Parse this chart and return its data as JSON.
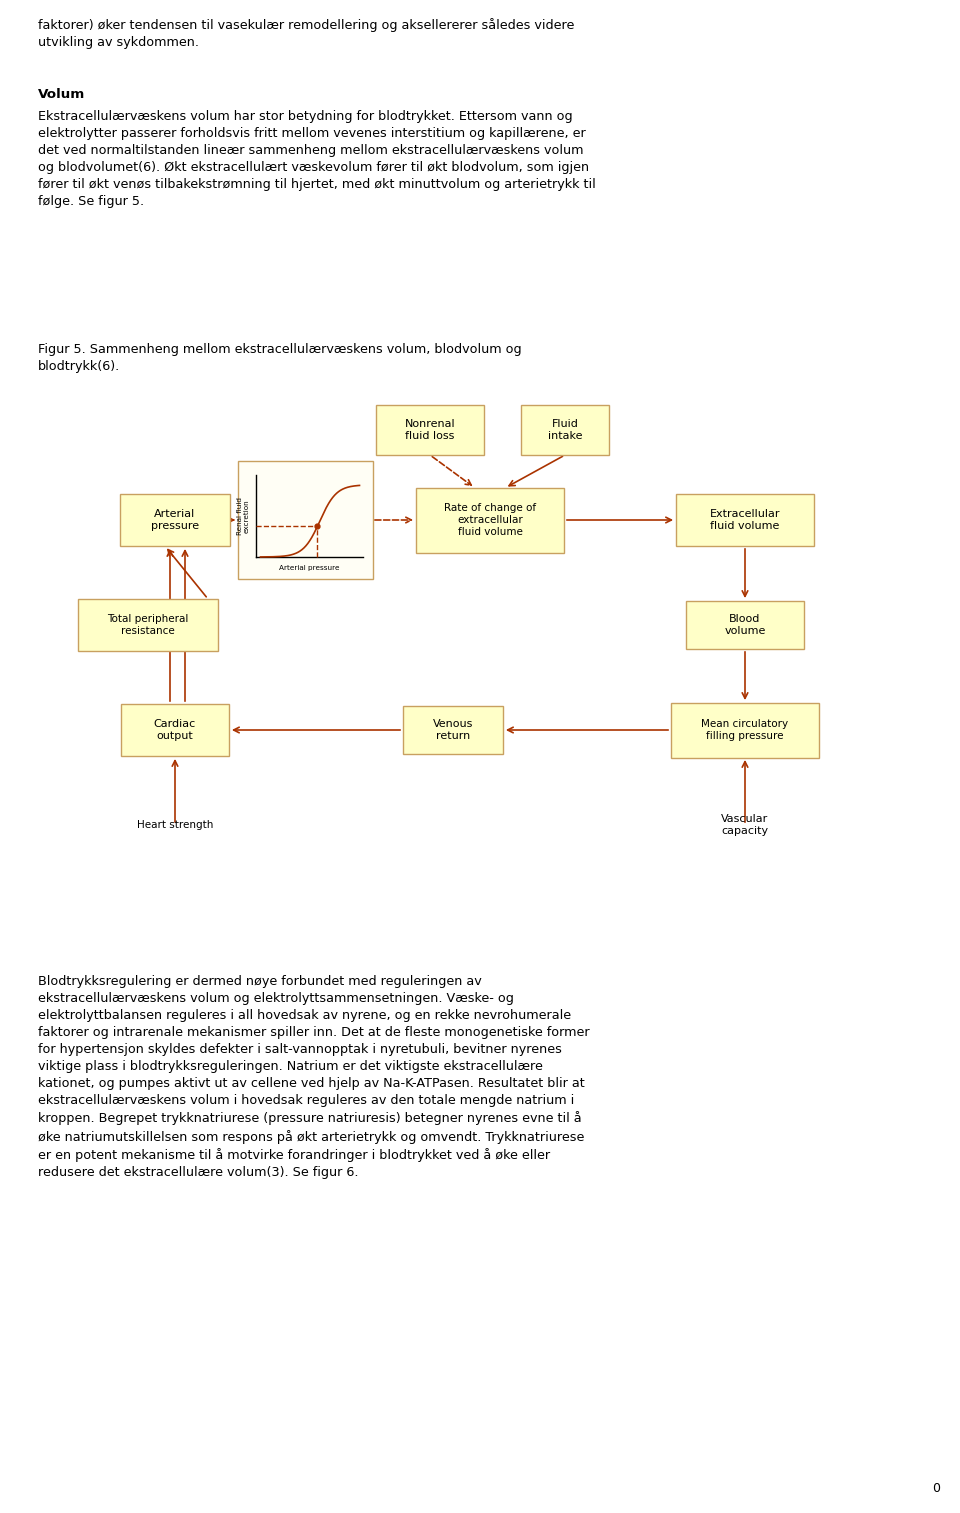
{
  "bg_color": "#ffffff",
  "box_fill": "#ffffc8",
  "box_edge": "#c8a060",
  "arrow_color": "#aa3300",
  "text_color": "#000000",
  "fig_width": 9.6,
  "fig_height": 15.13,
  "top_text": "faktorer) øker tendensen til vasekulær remodellering og aksellererer således videre\nutvikling av sykdommen.",
  "volum_header": "Volum",
  "body_text": "Ekstracellulærvæskens volum har stor betydning for blodtrykket. Ettersom vann og\nelektrolytter passerer forholdsvis fritt mellom vevenes interstitium og kapillærene, er\ndet ved normaltilstanden lineær sammenheng mellom ekstracellulærvæskens volum\nog blodvolumet(6). Økt ekstracellulært væskevolum fører til økt blodvolum, som igjen\nfører til økt venøs tilbakekstrømning til hjertet, med økt minuttvolum og arterietrykk til\nfølge. Se figur 5.",
  "figur_caption": "Figur 5. Sammenheng mellom ekstracellulærvæskens volum, blodvolum og\nblodtrykk(6).",
  "bottom_text": "Blodtrykksregulering er dermed nøye forbundet med reguleringen av\nekstracellulærvæskens volum og elektrolyttsammensetningen. Væske- og\nelektrolyttbalansen reguleres i all hovedsak av nyrene, og en rekke nevrohumerale\nfaktorer og intrarenale mekanismer spiller inn. Det at de fleste monogenetiske former\nfor hypertensjon skyldes defekter i salt-vannopptak i nyretubuli, bevitner nyrenes\nviktige plass i blodtrykksreguleringen. Natrium er det viktigste ekstracellulære\nkationet, og pumpes aktivt ut av cellene ved hjelp av Na-K-ATPasen. Resultatet blir at\nekstracellulærvæskens volum i hovedsak reguleres av den totale mengde natrium i\nkroppen. Begrepet trykknatriurese (pressure natriuresis) betegner nyrenes evne til å\nøke natriumutskillelsen som respons på økt arterietrykk og omvendt. Trykknatriurese\ner en potent mekanisme til å motvirke forandringer i blodtrykket ved å øke eller\nredusere det ekstracellulære volum(3). Se figur 6.",
  "page_number": "0",
  "font_size_text": 9.2,
  "font_size_box": 8.0,
  "font_size_box_sm": 7.5
}
